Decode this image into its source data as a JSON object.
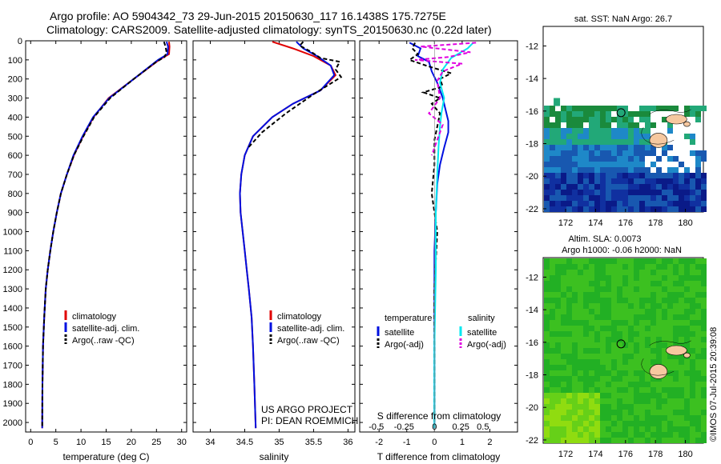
{
  "header": {
    "line1": "Argo profile: AO 5904342_73 29-Jun-2015 20150630_117 16.1438S 175.7275E",
    "line2": "Climatology: CARS2009. Satellite-adjusted climatology: synTS_20150630.nc (0.22d later)"
  },
  "credit": {
    "project": "US ARGO PROJECT",
    "pi": "PI: DEAN ROEMMICH"
  },
  "watermark": "©IMOS 07-Jul-2015 20:39:08",
  "colors": {
    "climatology": "#e00000",
    "satellite": "#0010e0",
    "argo": "#000000",
    "salinity_sat": "#00e8f0",
    "salinity_argo": "#e000e0"
  },
  "chart_data": [
    {
      "type": "line",
      "id": "temperature",
      "xlabel": "temperature (deg C)",
      "ylabel": "",
      "xlim": [
        -1,
        31
      ],
      "ylim": [
        2050,
        0
      ],
      "y_reversed": true,
      "x_ticks": [
        0,
        5,
        10,
        15,
        20,
        25,
        30
      ],
      "y_ticks": [
        0,
        100,
        200,
        300,
        400,
        500,
        600,
        700,
        800,
        900,
        1000,
        1100,
        1200,
        1300,
        1400,
        1500,
        1600,
        1700,
        1800,
        1900,
        2000
      ],
      "series": [
        {
          "name": "climatology",
          "color": "#e00000",
          "dash": false,
          "x": [
            27.5,
            27.6,
            27.5,
            25.5,
            20.5,
            15.5,
            12.5,
            10.4,
            8.6,
            7.2,
            6.0,
            5.2,
            4.5,
            3.9,
            3.4,
            3.0,
            2.7,
            2.45,
            2.35,
            2.3
          ],
          "y": [
            5,
            30,
            70,
            100,
            200,
            300,
            400,
            500,
            600,
            700,
            800,
            900,
            1000,
            1100,
            1200,
            1300,
            1450,
            1600,
            1800,
            2030
          ]
        },
        {
          "name": "satellite-adj. clim.",
          "color": "#0010e0",
          "dash": false,
          "x": [
            27.0,
            27.3,
            27.2,
            25.3,
            20.5,
            15.6,
            12.4,
            10.3,
            8.5,
            7.2,
            6.0,
            5.2,
            4.5,
            3.9,
            3.4,
            3.0,
            2.7,
            2.45,
            2.35,
            2.3
          ],
          "y": [
            5,
            30,
            70,
            100,
            200,
            300,
            400,
            500,
            600,
            700,
            800,
            900,
            1000,
            1100,
            1200,
            1300,
            1450,
            1600,
            1800,
            2030
          ]
        },
        {
          "name": "Argo(..raw -QC)",
          "color": "#000000",
          "dash": true,
          "x": [
            26.5,
            26.8,
            27.0,
            26.6,
            25.0,
            20.5,
            15.8,
            12.6,
            10.5,
            8.6,
            7.2,
            6.0,
            5.2,
            4.5,
            3.9,
            3.4,
            3.0,
            2.7,
            2.45,
            2.35,
            2.3
          ],
          "y": [
            5,
            30,
            60,
            85,
            110,
            200,
            300,
            400,
            500,
            600,
            700,
            800,
            900,
            1000,
            1100,
            1200,
            1300,
            1450,
            1600,
            1800,
            2030
          ]
        }
      ],
      "legend": [
        "climatology",
        "satellite-adj. clim.",
        "Argo(..raw -QC)"
      ],
      "legend_position": "lower-middle"
    },
    {
      "type": "line",
      "id": "salinity",
      "xlabel": "salinity",
      "ylabel": "",
      "xlim": [
        33.75,
        36.1
      ],
      "ylim": [
        2050,
        0
      ],
      "y_reversed": true,
      "x_ticks": [
        34,
        34.5,
        35,
        35.5,
        36
      ],
      "series": [
        {
          "name": "climatology",
          "color": "#e00000",
          "dash": false,
          "x": [
            34.9,
            35.2,
            35.5,
            35.75,
            35.82,
            35.6,
            35.2,
            34.9,
            34.62,
            34.5,
            34.45,
            34.43,
            34.44,
            34.47,
            34.5,
            34.53,
            34.56,
            34.6,
            34.62,
            34.64,
            34.66
          ],
          "y": [
            5,
            40,
            80,
            130,
            180,
            260,
            330,
            400,
            500,
            600,
            700,
            800,
            900,
            1000,
            1100,
            1200,
            1300,
            1450,
            1600,
            1800,
            2030
          ]
        },
        {
          "name": "satellite-adj. clim.",
          "color": "#0010e0",
          "dash": false,
          "x": [
            35.25,
            35.35,
            35.55,
            35.75,
            35.8,
            35.6,
            35.2,
            34.9,
            34.62,
            34.5,
            34.45,
            34.43,
            34.44,
            34.47,
            34.5,
            34.53,
            34.56,
            34.6,
            34.62,
            34.64,
            34.66
          ],
          "y": [
            5,
            40,
            80,
            130,
            180,
            260,
            330,
            400,
            500,
            600,
            700,
            800,
            900,
            1000,
            1100,
            1200,
            1300,
            1450,
            1600,
            1800,
            2030
          ]
        },
        {
          "name": "Argo(..raw -QC)",
          "color": "#000000",
          "dash": true,
          "x": [
            35.35,
            35.3,
            35.45,
            35.6,
            35.88,
            35.82,
            35.9,
            35.5,
            35.1,
            34.75,
            34.55
          ],
          "y": [
            5,
            25,
            55,
            90,
            110,
            150,
            190,
            280,
            380,
            480,
            560
          ]
        }
      ],
      "legend": [
        "climatology",
        "satellite-adj. clim.",
        "Argo(..raw -QC)"
      ],
      "legend_position": "lower-middle"
    },
    {
      "type": "line",
      "id": "difference",
      "xlabel": "T difference from climatology",
      "x2label": "S difference from climatology",
      "xlim": [
        -2.7,
        3.0
      ],
      "ylim": [
        2050,
        0
      ],
      "y_reversed": true,
      "x_ticks": [
        -2,
        -1,
        0,
        1,
        2
      ],
      "x2_ticks": [
        "-0.5",
        "-0.25",
        "0",
        "0.25",
        "0.5"
      ],
      "x2_positions_T": [
        -2.1,
        -1.1,
        0,
        0.95,
        1.75
      ],
      "series": [
        {
          "name": "temperature satellite",
          "color": "#0010e0",
          "dash": false,
          "x": [
            -0.9,
            -0.5,
            -0.6,
            -0.2,
            -0.1,
            0.1,
            0.3,
            0.4,
            0.5,
            0.5,
            0.35,
            0.2,
            0.1,
            0.05,
            0.0,
            0.0,
            0.0,
            0.0
          ],
          "y": [
            10,
            40,
            80,
            110,
            160,
            220,
            300,
            360,
            420,
            480,
            560,
            650,
            750,
            900,
            1100,
            1400,
            1700,
            2030
          ]
        },
        {
          "name": "temperature Argo(-adj)",
          "color": "#000000",
          "dash": true,
          "x": [
            -0.7,
            -0.8,
            -0.6,
            -0.9,
            -0.3,
            0.6,
            0.2,
            0.3,
            -0.4,
            0.2,
            -0.1,
            0.2,
            0.1,
            0.0,
            0.0,
            -0.1,
            0.1,
            0.0,
            0.0,
            0.0
          ],
          "y": [
            10,
            40,
            70,
            100,
            130,
            170,
            200,
            240,
            270,
            300,
            330,
            380,
            450,
            520,
            650,
            800,
            1000,
            1300,
            1700,
            2030
          ]
        },
        {
          "name": "salinity satellite",
          "color": "#00e8f0",
          "dash": false,
          "x": [
            1.4,
            1.2,
            0.6,
            0.3,
            0.2,
            0.35,
            0.25,
            0.2,
            0.15,
            0.1,
            0.05,
            0.05,
            0.0,
            0.0
          ],
          "y": [
            10,
            40,
            90,
            150,
            220,
            300,
            380,
            450,
            550,
            700,
            900,
            1200,
            1600,
            2030
          ]
        },
        {
          "name": "salinity Argo(-adj)",
          "color": "#e000e0",
          "dash": true,
          "x": [
            1.5,
            -0.5,
            1.3,
            0.5,
            -0.7,
            1.0,
            0.3,
            0.1,
            0.2,
            -0.2,
            0.3,
            0.1,
            -0.1
          ],
          "y": [
            10,
            30,
            60,
            85,
            100,
            120,
            160,
            210,
            300,
            380,
            440,
            520,
            600
          ]
        }
      ],
      "legend_temperature_title": "temperature",
      "legend_salinity_title": "salinity",
      "legend_entries": [
        "satellite",
        "Argo(-adj)",
        "satellite",
        "Argo(-adj)"
      ]
    },
    {
      "type": "heatmap",
      "id": "sst_map",
      "title": "sat. SST: NaN Argo: 26.7",
      "xlim": [
        170.5,
        181.2
      ],
      "ylim": [
        -22.2,
        -10.8
      ],
      "x_ticks": [
        172,
        174,
        176,
        178,
        180
      ],
      "y_ticks": [
        -12,
        -14,
        -16,
        -18,
        -20,
        -22
      ],
      "argo_position": [
        175.7,
        -16.1
      ],
      "colormap": [
        "#1a8a3c",
        "#22a878",
        "#1e88c8",
        "#1858b0",
        "#1030a0",
        "#0a1a88"
      ]
    },
    {
      "type": "heatmap",
      "id": "sla_map",
      "title": "Altim. SLA: 0.0073",
      "subtitle": "Argo h1000: -0.06 h2000: NaN",
      "xlim": [
        170.5,
        181.2
      ],
      "ylim": [
        -22.2,
        -10.8
      ],
      "x_ticks": [
        172,
        174,
        176,
        178,
        180
      ],
      "y_ticks": [
        -12,
        -14,
        -16,
        -18,
        -20,
        -22
      ],
      "argo_position": [
        175.7,
        -16.1
      ],
      "colormap": [
        "#22b024",
        "#3cc020",
        "#66d018",
        "#90dc10"
      ]
    }
  ]
}
